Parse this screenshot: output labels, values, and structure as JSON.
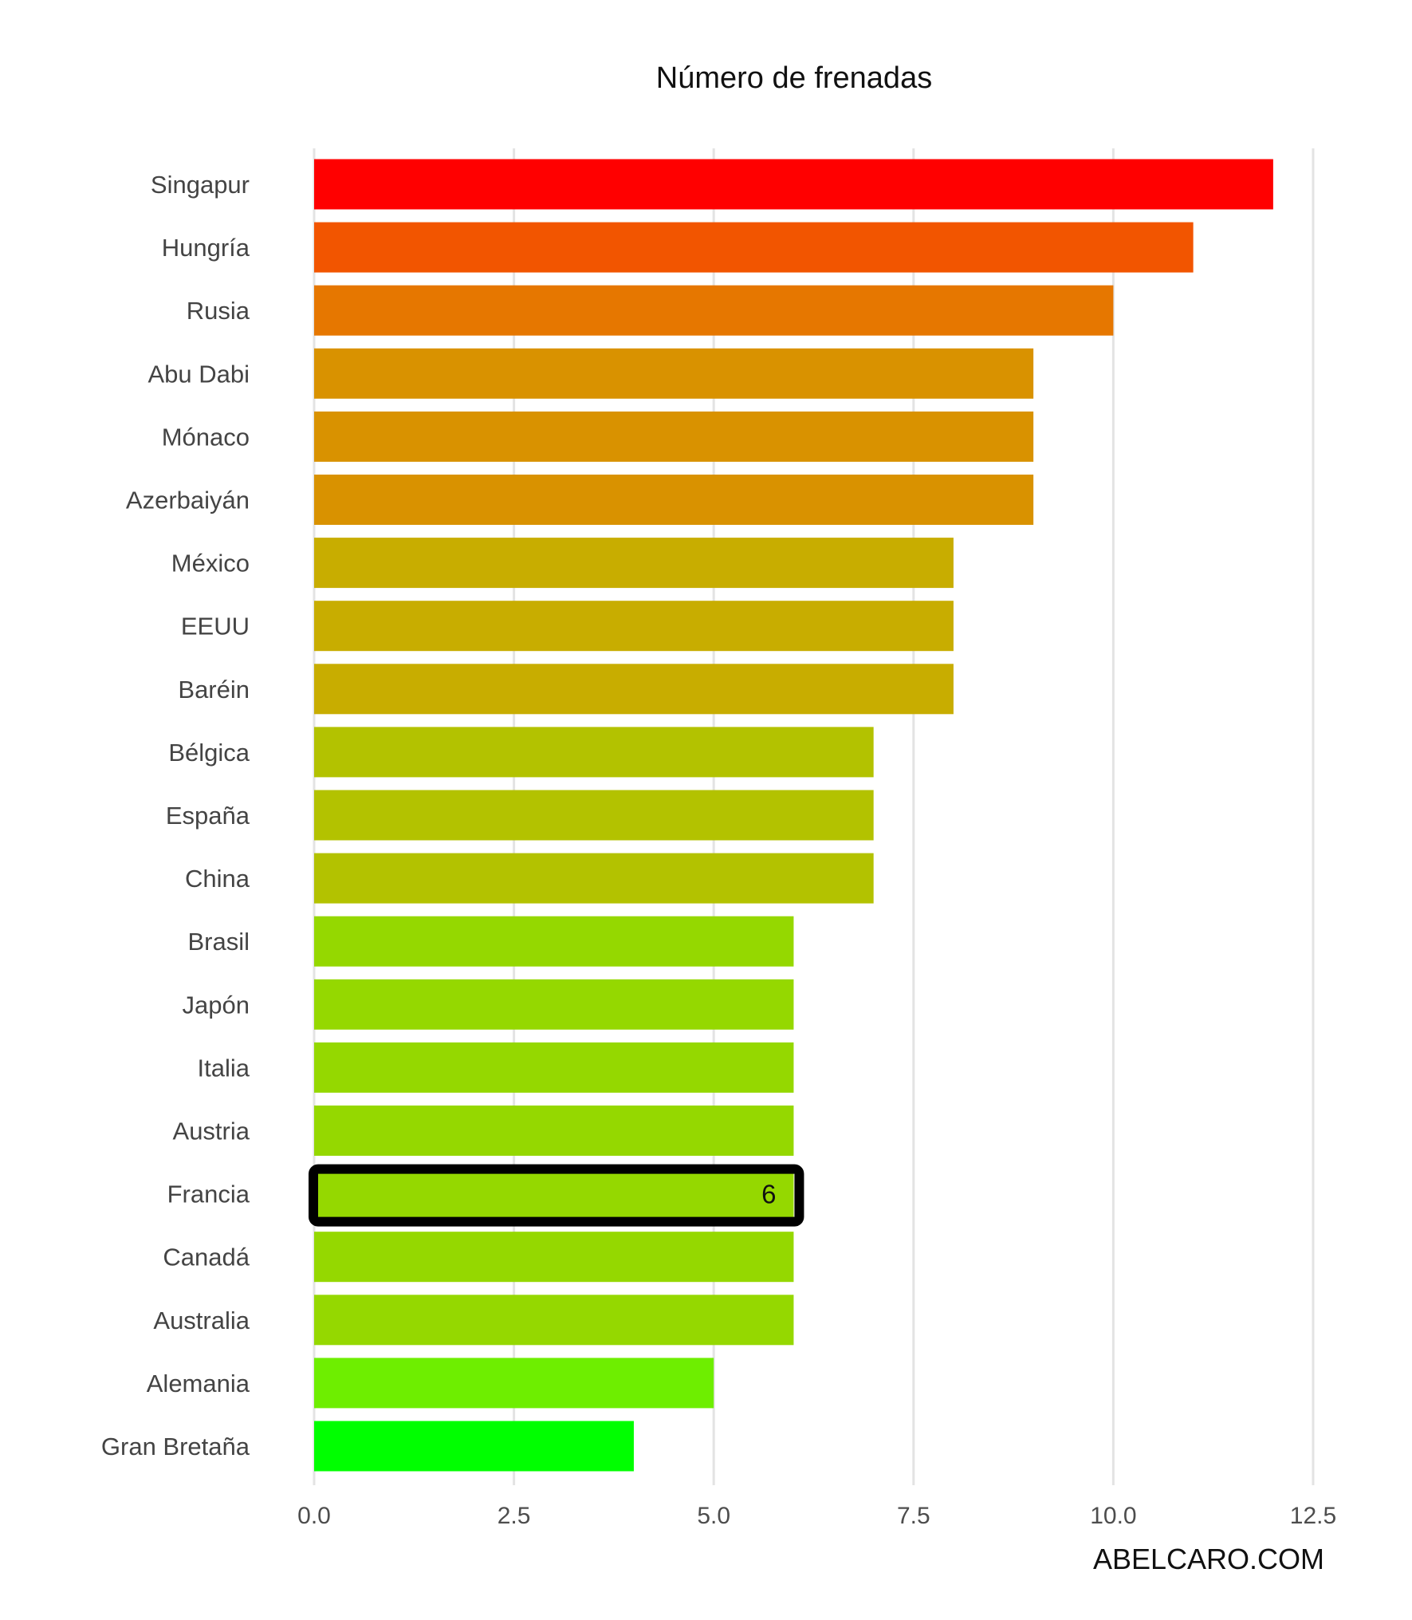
{
  "chart_data": {
    "type": "bar",
    "orientation": "horizontal",
    "title": "Número de frenadas",
    "xlabel": "",
    "ylabel": "",
    "categories": [
      "Singapur",
      "Hungría",
      "Rusia",
      "Abu Dabi",
      "Mónaco",
      "Azerbaiyán",
      "México",
      "EEUU",
      "Baréin",
      "Bélgica",
      "España",
      "China",
      "Brasil",
      "Japón",
      "Italia",
      "Austria",
      "Francia",
      "Canadá",
      "Australia",
      "Alemania",
      "Gran Bretaña"
    ],
    "values": [
      12,
      11,
      10,
      9,
      9,
      9,
      8,
      8,
      8,
      7,
      7,
      7,
      6,
      6,
      6,
      6,
      6,
      6,
      6,
      5,
      4
    ],
    "xlim": [
      0,
      12.5
    ],
    "xticks": [
      "0.0",
      "2.5",
      "5.0",
      "7.5",
      "10.0",
      "12.5"
    ],
    "grid": "vertical",
    "legend": "none",
    "colors": {
      "12": "#ff0000",
      "11": "#f25500",
      "10": "#e67700",
      "9": "#d99200",
      "8": "#c8ad00",
      "7": "#b3c200",
      "6": "#95d800",
      "5": "#6eee00",
      "4": "#00ff00"
    },
    "highlight": {
      "category": "Francia",
      "value_label": "6"
    },
    "credit": "ABELCARO.COM"
  }
}
